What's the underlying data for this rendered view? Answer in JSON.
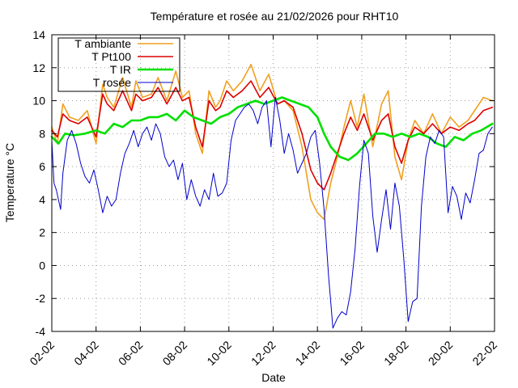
{
  "chart_data": {
    "type": "line",
    "title": "Température et rosée au 21/02/2026 pour RHT10",
    "xlabel": "Date",
    "ylabel": "Temperature °C",
    "xlim": [
      0,
      20
    ],
    "ylim": [
      -4,
      14
    ],
    "x_unit": "days since 02-02",
    "x_ticks": [
      {
        "x": 0,
        "label": "02-02"
      },
      {
        "x": 2,
        "label": "04-02"
      },
      {
        "x": 4,
        "label": "06-02"
      },
      {
        "x": 6,
        "label": "08-02"
      },
      {
        "x": 8,
        "label": "10-02"
      },
      {
        "x": 10,
        "label": "12-02"
      },
      {
        "x": 12,
        "label": "14-02"
      },
      {
        "x": 14,
        "label": "16-02"
      },
      {
        "x": 16,
        "label": "18-02"
      },
      {
        "x": 18,
        "label": "20-02"
      },
      {
        "x": 20,
        "label": "22-02"
      }
    ],
    "y_ticks": [
      {
        "y": -4,
        "label": "-4"
      },
      {
        "y": -2,
        "label": "-2"
      },
      {
        "y": 0,
        "label": "0"
      },
      {
        "y": 2,
        "label": "2"
      },
      {
        "y": 4,
        "label": "4"
      },
      {
        "y": 6,
        "label": "6"
      },
      {
        "y": 8,
        "label": "8"
      },
      {
        "y": 10,
        "label": "10"
      },
      {
        "y": 12,
        "label": "12"
      },
      {
        "y": 14,
        "label": "14"
      }
    ],
    "grid": true,
    "legend_position": "top-left",
    "series": [
      {
        "name": "T ambiante",
        "color": "#f0a020",
        "x": [
          0,
          0.25,
          0.5,
          0.8,
          1.2,
          1.6,
          2.0,
          2.3,
          2.5,
          2.8,
          3.2,
          3.6,
          3.8,
          4.1,
          4.5,
          4.8,
          5.2,
          5.6,
          5.9,
          6.2,
          6.5,
          6.8,
          7.1,
          7.4,
          7.6,
          7.9,
          8.2,
          8.6,
          9.0,
          9.4,
          9.8,
          10.2,
          10.5,
          10.9,
          11.3,
          11.7,
          12.0,
          12.3,
          12.6,
          12.9,
          13.2,
          13.5,
          13.8,
          14.1,
          14.5,
          14.9,
          15.2,
          15.5,
          15.8,
          16.1,
          16.4,
          16.8,
          17.2,
          17.6,
          18.0,
          18.4,
          18.8,
          19.1,
          19.5,
          19.9
        ],
        "y": [
          8.4,
          7.4,
          9.8,
          9.0,
          8.8,
          9.4,
          7.4,
          11.0,
          10.2,
          9.6,
          11.4,
          9.6,
          11.2,
          10.2,
          10.4,
          11.4,
          10.0,
          11.8,
          10.2,
          10.6,
          8.0,
          6.8,
          10.6,
          9.6,
          10.0,
          11.2,
          10.6,
          11.2,
          12.2,
          10.6,
          11.6,
          9.8,
          10.0,
          9.4,
          7.2,
          4.0,
          3.2,
          2.8,
          5.0,
          6.6,
          8.4,
          10.0,
          8.4,
          10.4,
          7.2,
          9.8,
          10.6,
          6.6,
          5.2,
          7.6,
          8.8,
          8.0,
          9.2,
          8.0,
          9.0,
          8.4,
          8.8,
          9.4,
          10.2,
          10.0
        ]
      },
      {
        "name": "T Pt100",
        "color": "#dd0000",
        "x": [
          0,
          0.25,
          0.5,
          0.8,
          1.2,
          1.6,
          2.0,
          2.3,
          2.5,
          2.8,
          3.2,
          3.6,
          3.8,
          4.1,
          4.5,
          4.8,
          5.2,
          5.6,
          5.9,
          6.2,
          6.5,
          6.8,
          7.1,
          7.4,
          7.6,
          7.9,
          8.2,
          8.6,
          9.0,
          9.4,
          9.8,
          10.2,
          10.5,
          10.9,
          11.3,
          11.7,
          12.0,
          12.3,
          12.6,
          12.9,
          13.2,
          13.5,
          13.8,
          14.1,
          14.5,
          14.9,
          15.2,
          15.5,
          15.8,
          16.1,
          16.4,
          16.8,
          17.2,
          17.6,
          18.0,
          18.4,
          18.8,
          19.1,
          19.5,
          19.9
        ],
        "y": [
          8.2,
          7.8,
          9.2,
          8.8,
          8.6,
          9.0,
          7.8,
          10.4,
          9.8,
          9.4,
          10.6,
          9.4,
          10.4,
          10.0,
          10.2,
          10.8,
          9.8,
          10.8,
          10.0,
          10.2,
          8.4,
          7.2,
          10.0,
          9.4,
          9.6,
          10.6,
          10.2,
          10.6,
          11.2,
          10.2,
          10.8,
          9.8,
          10.0,
          9.6,
          8.0,
          5.8,
          5.0,
          4.6,
          5.6,
          6.8,
          8.0,
          9.0,
          8.2,
          9.2,
          7.6,
          8.8,
          9.2,
          7.2,
          6.2,
          7.6,
          8.4,
          8.0,
          8.6,
          8.0,
          8.4,
          8.2,
          8.6,
          8.8,
          9.4,
          9.6
        ]
      },
      {
        "name": "T IR",
        "color": "#00e000",
        "x": [
          0,
          0.3,
          0.6,
          1.0,
          1.5,
          2.0,
          2.4,
          2.8,
          3.2,
          3.6,
          4.0,
          4.4,
          4.8,
          5.2,
          5.6,
          6.0,
          6.4,
          6.8,
          7.2,
          7.6,
          8.0,
          8.4,
          8.8,
          9.2,
          9.6,
          10.0,
          10.4,
          10.8,
          11.2,
          11.6,
          12.0,
          12.3,
          12.6,
          13.0,
          13.4,
          13.8,
          14.2,
          14.6,
          15.0,
          15.4,
          15.8,
          16.2,
          16.6,
          17.0,
          17.4,
          17.8,
          18.2,
          18.6,
          19.0,
          19.4,
          19.9
        ],
        "y": [
          7.8,
          7.4,
          8.0,
          7.9,
          8.0,
          8.2,
          8.0,
          8.6,
          8.4,
          8.8,
          8.8,
          9.0,
          9.0,
          9.2,
          8.8,
          9.4,
          9.0,
          8.8,
          8.6,
          9.0,
          9.2,
          9.6,
          9.8,
          10.0,
          9.8,
          10.0,
          10.2,
          10.0,
          9.8,
          9.6,
          9.0,
          8.0,
          7.2,
          6.6,
          6.4,
          6.8,
          7.4,
          8.0,
          8.0,
          7.8,
          8.0,
          7.8,
          8.0,
          7.8,
          7.4,
          7.2,
          7.8,
          7.6,
          8.0,
          8.2,
          8.6
        ]
      },
      {
        "name": "T rosée",
        "color": "#0000cc",
        "x": [
          0,
          0.1,
          0.2,
          0.4,
          0.5,
          0.7,
          0.9,
          1.1,
          1.3,
          1.5,
          1.7,
          1.9,
          2.1,
          2.3,
          2.5,
          2.7,
          2.9,
          3.1,
          3.3,
          3.5,
          3.7,
          3.9,
          4.1,
          4.3,
          4.5,
          4.7,
          4.9,
          5.1,
          5.3,
          5.5,
          5.7,
          5.9,
          6.1,
          6.3,
          6.5,
          6.7,
          6.9,
          7.1,
          7.3,
          7.5,
          7.7,
          7.9,
          8.1,
          8.3,
          8.5,
          8.7,
          8.9,
          9.1,
          9.3,
          9.5,
          9.7,
          9.9,
          10.1,
          10.3,
          10.5,
          10.7,
          10.9,
          11.1,
          11.3,
          11.5,
          11.7,
          11.9,
          12.1,
          12.3,
          12.5,
          12.7,
          12.9,
          13.1,
          13.3,
          13.5,
          13.7,
          13.9,
          14.1,
          14.3,
          14.5,
          14.7,
          14.9,
          15.1,
          15.3,
          15.5,
          15.7,
          15.9,
          16.1,
          16.3,
          16.5,
          16.7,
          16.9,
          17.1,
          17.3,
          17.5,
          17.7,
          17.9,
          18.1,
          18.3,
          18.5,
          18.7,
          18.9,
          19.1,
          19.3,
          19.5,
          19.7,
          19.9
        ],
        "y": [
          7.6,
          5.0,
          4.6,
          3.4,
          5.6,
          7.6,
          8.2,
          7.4,
          6.2,
          5.4,
          5.0,
          5.8,
          4.6,
          3.2,
          4.2,
          3.6,
          4.0,
          5.6,
          6.8,
          7.4,
          8.2,
          7.2,
          8.0,
          8.4,
          7.6,
          8.6,
          8.0,
          6.6,
          6.0,
          6.4,
          5.2,
          6.2,
          4.0,
          5.2,
          4.2,
          3.6,
          4.6,
          4.0,
          5.6,
          4.2,
          4.4,
          5.0,
          7.6,
          8.8,
          9.2,
          9.6,
          9.8,
          9.4,
          8.6,
          9.6,
          10.0,
          7.2,
          10.2,
          8.8,
          6.8,
          8.0,
          7.0,
          5.6,
          6.2,
          6.8,
          7.8,
          8.2,
          6.2,
          3.4,
          -0.6,
          -3.8,
          -3.2,
          -2.8,
          -3.0,
          -1.6,
          1.0,
          4.8,
          7.6,
          6.8,
          3.0,
          0.8,
          2.8,
          4.6,
          2.2,
          5.0,
          3.6,
          0.4,
          -3.4,
          -2.2,
          -2.0,
          3.6,
          6.6,
          7.8,
          7.4,
          8.2,
          7.8,
          3.2,
          4.8,
          4.2,
          2.8,
          4.4,
          3.8,
          5.2,
          6.8,
          7.0,
          8.0,
          8.4
        ]
      }
    ]
  }
}
